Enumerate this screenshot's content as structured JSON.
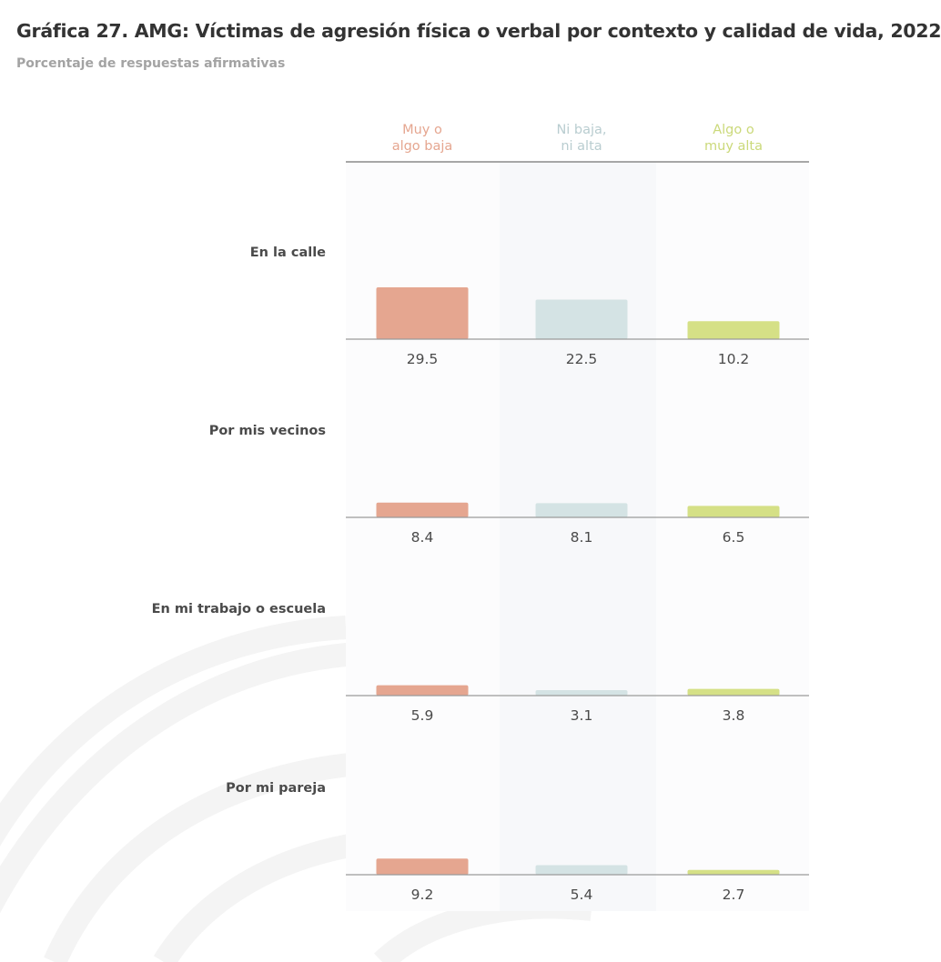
{
  "header": {
    "title": "Gráfica 27. AMG: Víctimas de agresión física o verbal por contexto y calidad de vida, 2022",
    "subtitle": "Porcentaje de respuestas afirmativas"
  },
  "chart_data": {
    "type": "bar",
    "title": "Gráfica 27. AMG: Víctimas de agresión física o verbal por contexto y calidad de vida, 2022",
    "subtitle": "Porcentaje de respuestas afirmativas",
    "columns": [
      {
        "label_lines": [
          "Muy o",
          "algo baja"
        ],
        "color": "#e5a690"
      },
      {
        "label_lines": [
          "Ni baja,",
          "ni alta"
        ],
        "color": "#d4e3e4"
      },
      {
        "label_lines": [
          "Algo o",
          "muy alta"
        ],
        "color": "#d5e086"
      }
    ],
    "rows": [
      {
        "label": "En la calle",
        "values": [
          29.5,
          22.5,
          10.2
        ]
      },
      {
        "label": "Por mis vecinos",
        "values": [
          8.4,
          8.1,
          6.5
        ]
      },
      {
        "label": "En mi trabajo o escuela",
        "values": [
          5.9,
          3.1,
          3.8
        ]
      },
      {
        "label": "Por mi pareja",
        "values": [
          9.2,
          5.4,
          2.7
        ]
      }
    ],
    "ylim": [
      0,
      30
    ],
    "value_labels": "below baseline",
    "grid": false,
    "colors": {
      "column_label": [
        "#e5a690",
        "#b9cdd0",
        "#cbd97a"
      ],
      "header_rule": "#8a8a8a",
      "baseline": "#9a9a9a",
      "panel_band": "#f7f8fa",
      "text": "#4a4a4a"
    }
  }
}
